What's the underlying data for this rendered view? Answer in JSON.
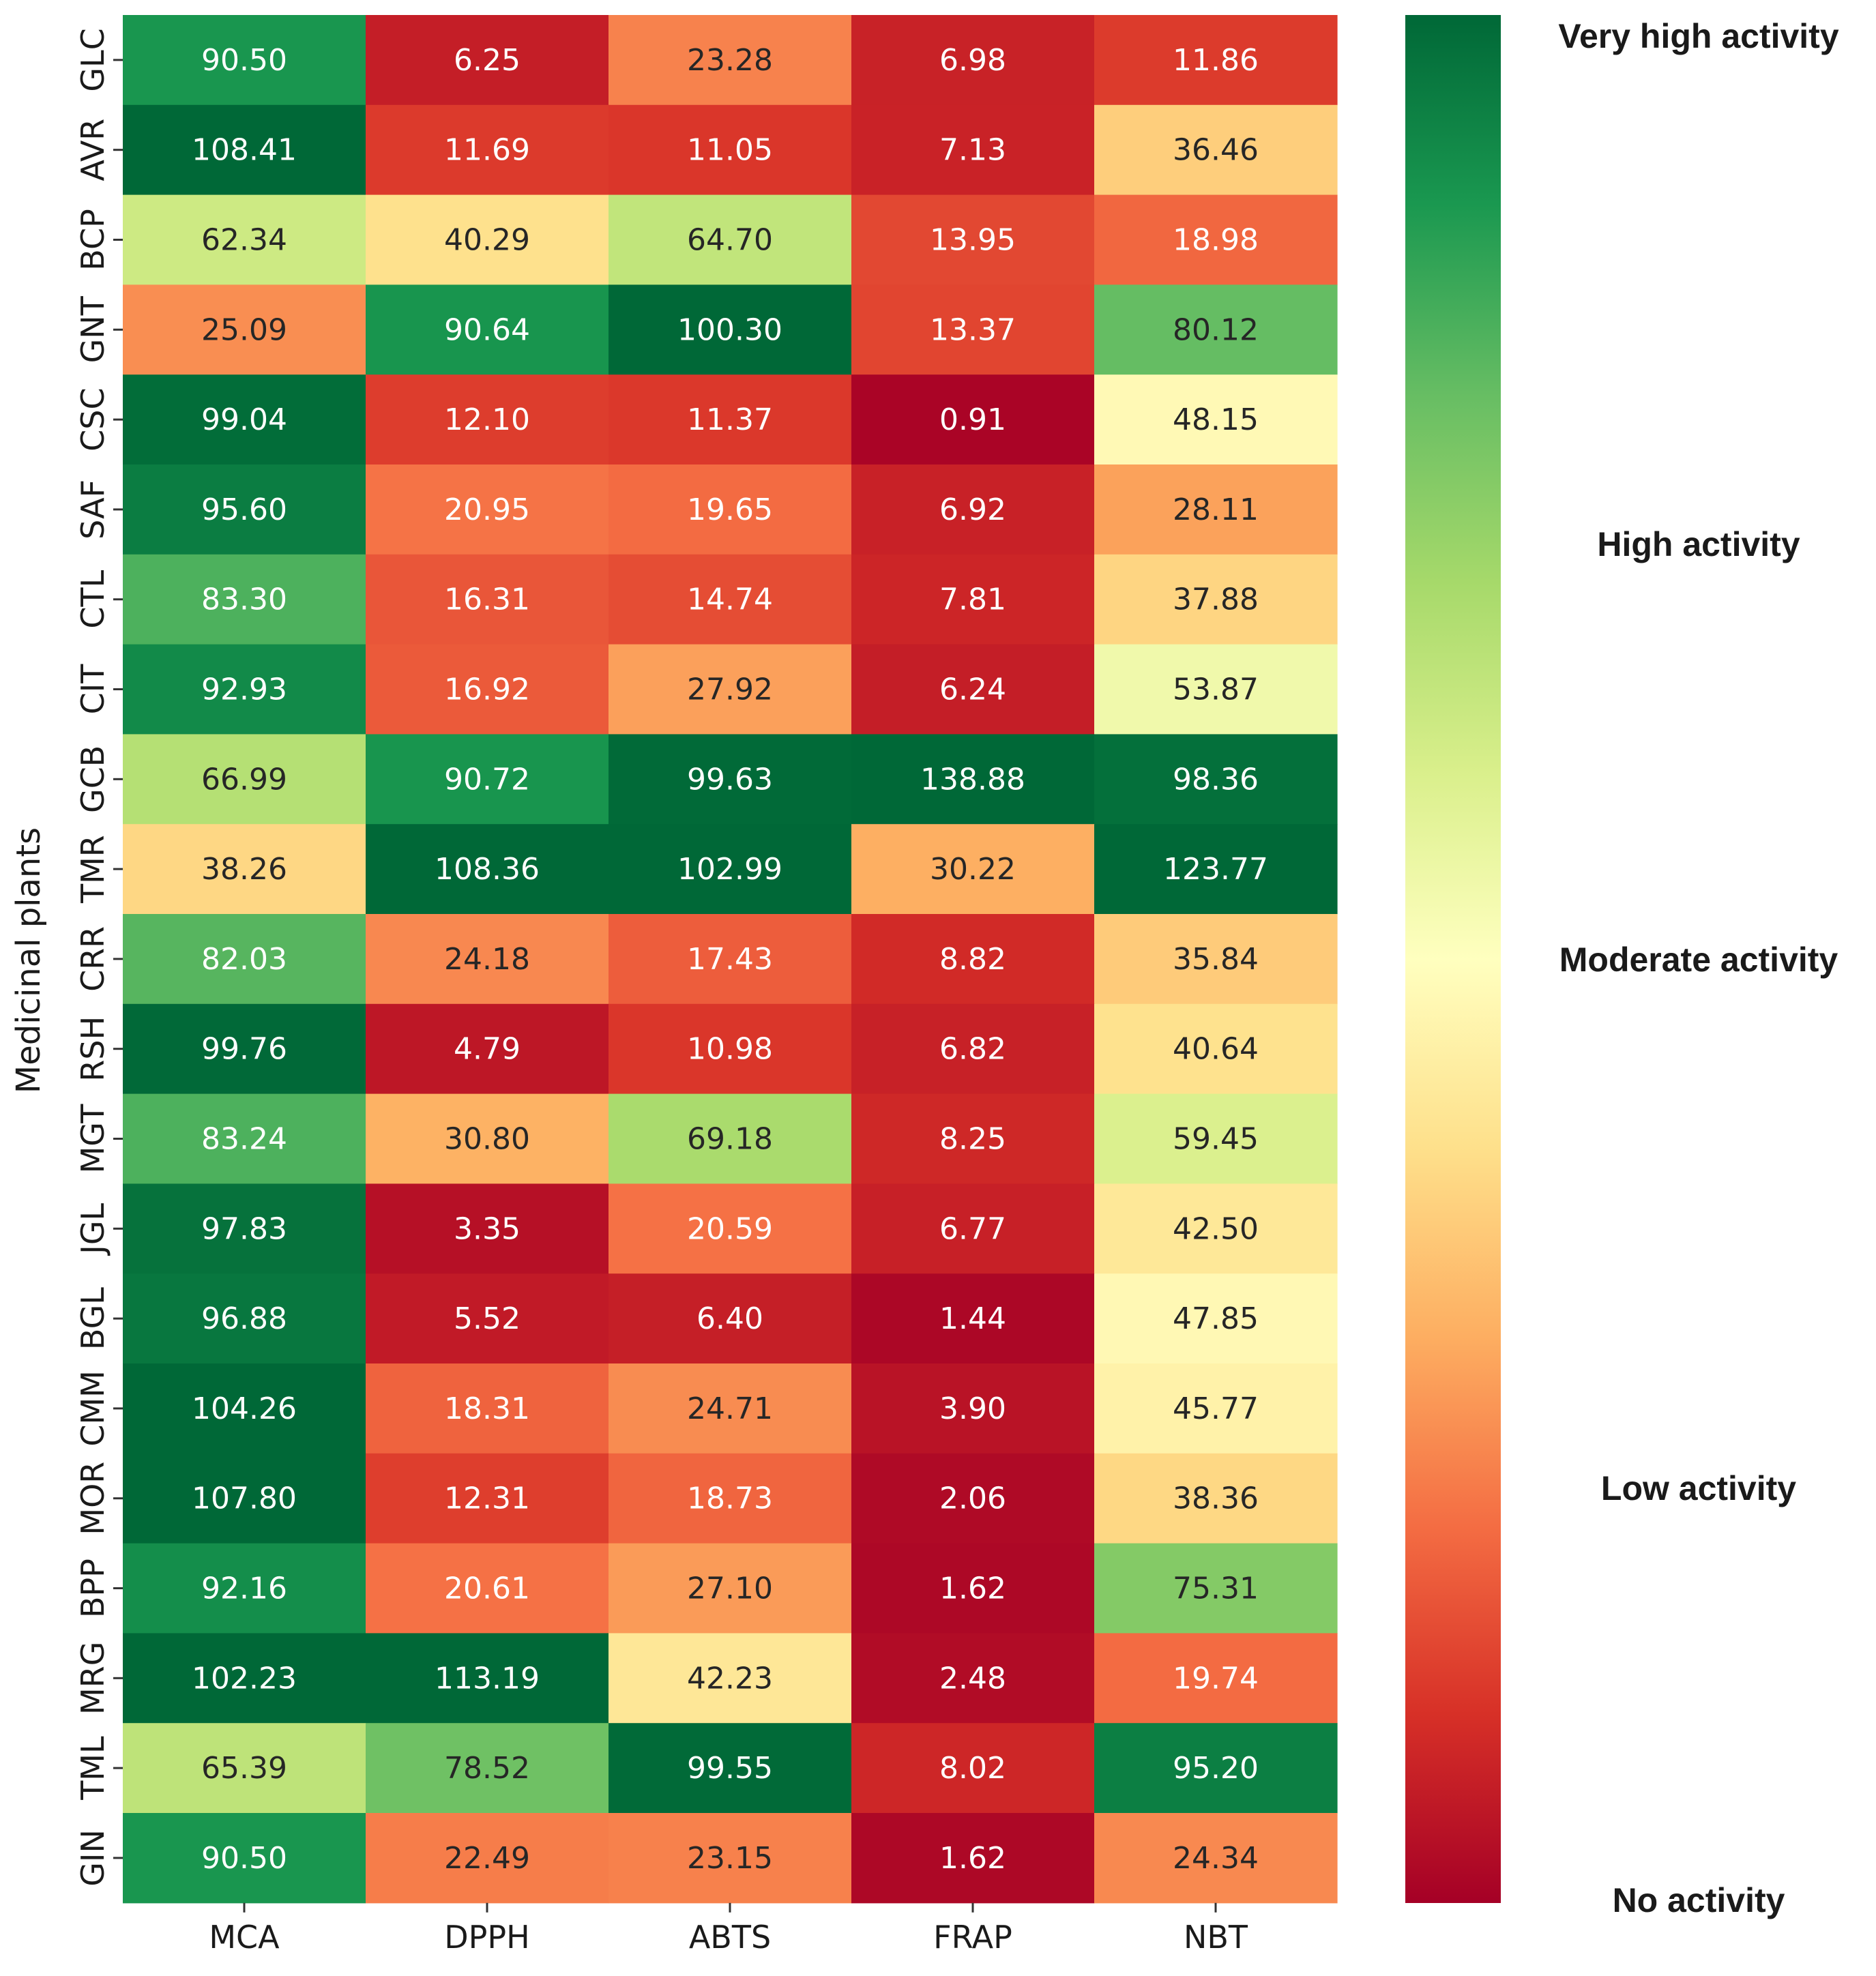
{
  "chart_data": {
    "type": "heatmap",
    "title": "",
    "xlabel": "",
    "ylabel": "Medicinal plants",
    "columns": [
      "MCA",
      "DPPH",
      "ABTS",
      "FRAP",
      "NBT"
    ],
    "rows": [
      "GLC",
      "AVR",
      "BCP",
      "GNT",
      "CSC",
      "SAF",
      "CTL",
      "CIT",
      "GCB",
      "TMR",
      "CRR",
      "RSH",
      "MGT",
      "JGL",
      "BGL",
      "CMM",
      "MOR",
      "BPP",
      "MRG",
      "TML",
      "GIN"
    ],
    "values": [
      [
        "90.50",
        "6.25",
        "23.28",
        "6.98",
        "11.86"
      ],
      [
        "108.41",
        "11.69",
        "11.05",
        "7.13",
        "36.46"
      ],
      [
        "62.34",
        "40.29",
        "64.70",
        "13.95",
        "18.98"
      ],
      [
        "25.09",
        "90.64",
        "100.30",
        "13.37",
        "80.12"
      ],
      [
        "99.04",
        "12.10",
        "11.37",
        "0.91",
        "48.15"
      ],
      [
        "95.60",
        "20.95",
        "19.65",
        "6.92",
        "28.11"
      ],
      [
        "83.30",
        "16.31",
        "14.74",
        "7.81",
        "37.88"
      ],
      [
        "92.93",
        "16.92",
        "27.92",
        "6.24",
        "53.87"
      ],
      [
        "66.99",
        "90.72",
        "99.63",
        "138.88",
        "98.36"
      ],
      [
        "38.26",
        "108.36",
        "102.99",
        "30.22",
        "123.77"
      ],
      [
        "82.03",
        "24.18",
        "17.43",
        "8.82",
        "35.84"
      ],
      [
        "99.76",
        "4.79",
        "10.98",
        "6.82",
        "40.64"
      ],
      [
        "83.24",
        "30.80",
        "69.18",
        "8.25",
        "59.45"
      ],
      [
        "97.83",
        "3.35",
        "20.59",
        "6.77",
        "42.50"
      ],
      [
        "96.88",
        "5.52",
        "6.40",
        "1.44",
        "47.85"
      ],
      [
        "104.26",
        "18.31",
        "24.71",
        "3.90",
        "45.77"
      ],
      [
        "107.80",
        "12.31",
        "18.73",
        "2.06",
        "38.36"
      ],
      [
        "92.16",
        "20.61",
        "27.10",
        "1.62",
        "75.31"
      ],
      [
        "102.23",
        "113.19",
        "42.23",
        "2.48",
        "19.74"
      ],
      [
        "65.39",
        "78.52",
        "99.55",
        "8.02",
        "95.20"
      ],
      [
        "90.50",
        "22.49",
        "23.15",
        "1.62",
        "24.34"
      ]
    ],
    "color_range": [
      0,
      100
    ],
    "colormap": "RdYlGn",
    "colormap_stops": [
      "#a50026",
      "#d73027",
      "#f46d43",
      "#fdae61",
      "#fee08b",
      "#ffffbf",
      "#d9ef8b",
      "#a6d96a",
      "#66bd63",
      "#1a9850",
      "#006837"
    ],
    "colorbar_labels": [
      "Very high activity",
      "High activity",
      "Moderate activity",
      "Low activity",
      "No activity"
    ],
    "colorbar_label_values": [
      100,
      72,
      50,
      22,
      0
    ]
  }
}
